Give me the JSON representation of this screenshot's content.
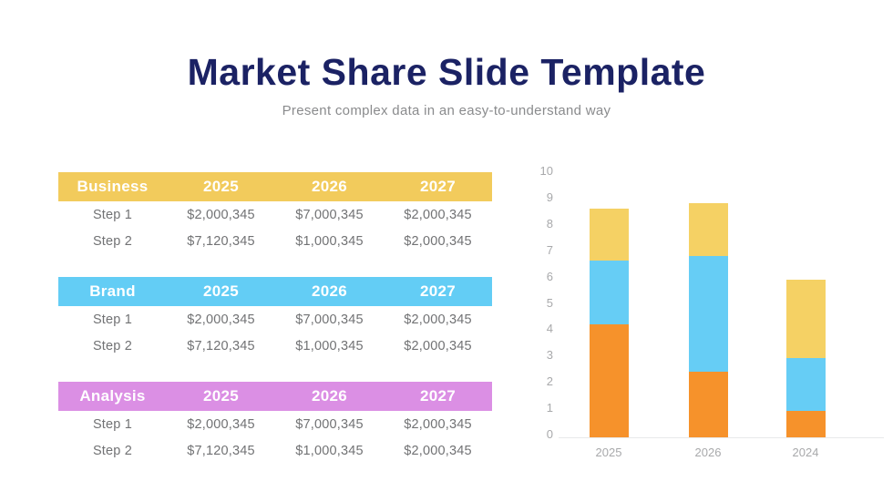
{
  "slide": {
    "title": "Market Share Slide Template",
    "subtitle": "Present complex data in an easy-to-understand way"
  },
  "colors": {
    "title": "#1B2264",
    "subtitle": "#8A8B8D",
    "row_text": "#717274",
    "axis_label": "#A8A9AB",
    "axis_line": "#E8E9EA",
    "table_header_yellow": "#F2CB5C",
    "table_header_blue": "#63CDF5",
    "table_header_purple": "#DB8FE4",
    "bar_orange": "#F6922B",
    "bar_blue": "#66CDF5",
    "bar_yellow": "#F5D164"
  },
  "tables": [
    {
      "name": "Business",
      "header_color": "#F2CB5C",
      "columns": [
        "2025",
        "2026",
        "2027"
      ],
      "rows": [
        {
          "label": "Step 1",
          "values": [
            "$2,000,345",
            "$7,000,345",
            "$2,000,345"
          ]
        },
        {
          "label": "Step 2",
          "values": [
            "$7,120,345",
            "$1,000,345",
            "$2,000,345"
          ]
        }
      ]
    },
    {
      "name": "Brand",
      "header_color": "#63CDF5",
      "columns": [
        "2025",
        "2026",
        "2027"
      ],
      "rows": [
        {
          "label": "Step 1",
          "values": [
            "$2,000,345",
            "$7,000,345",
            "$2,000,345"
          ]
        },
        {
          "label": "Step 2",
          "values": [
            "$7,120,345",
            "$1,000,345",
            "$2,000,345"
          ]
        }
      ]
    },
    {
      "name": "Analysis",
      "header_color": "#DB8FE4",
      "columns": [
        "2025",
        "2026",
        "2027"
      ],
      "rows": [
        {
          "label": "Step 1",
          "values": [
            "$2,000,345",
            "$7,000,345",
            "$2,000,345"
          ]
        },
        {
          "label": "Step 2",
          "values": [
            "$7,120,345",
            "$1,000,345",
            "$2,000,345"
          ]
        }
      ]
    }
  ],
  "chart_data": {
    "type": "bar",
    "stacked": true,
    "title": "",
    "xlabel": "",
    "ylabel": "",
    "categories": [
      "2025",
      "2026",
      "2024"
    ],
    "series": [
      {
        "name": "segment-orange",
        "color": "#F6922B",
        "values": [
          4.3,
          2.5,
          1.0
        ]
      },
      {
        "name": "segment-blue",
        "color": "#66CDF5",
        "values": [
          2.4,
          4.4,
          2.0
        ]
      },
      {
        "name": "segment-yellow",
        "color": "#F5D164",
        "values": [
          2.0,
          2.0,
          3.0
        ]
      }
    ],
    "totals": [
      8.7,
      8.9,
      6.0
    ],
    "ylim": [
      0,
      10
    ],
    "yticks": [
      0,
      1,
      2,
      3,
      4,
      5,
      6,
      7,
      8,
      9,
      10
    ],
    "grid": false,
    "legend": false
  }
}
